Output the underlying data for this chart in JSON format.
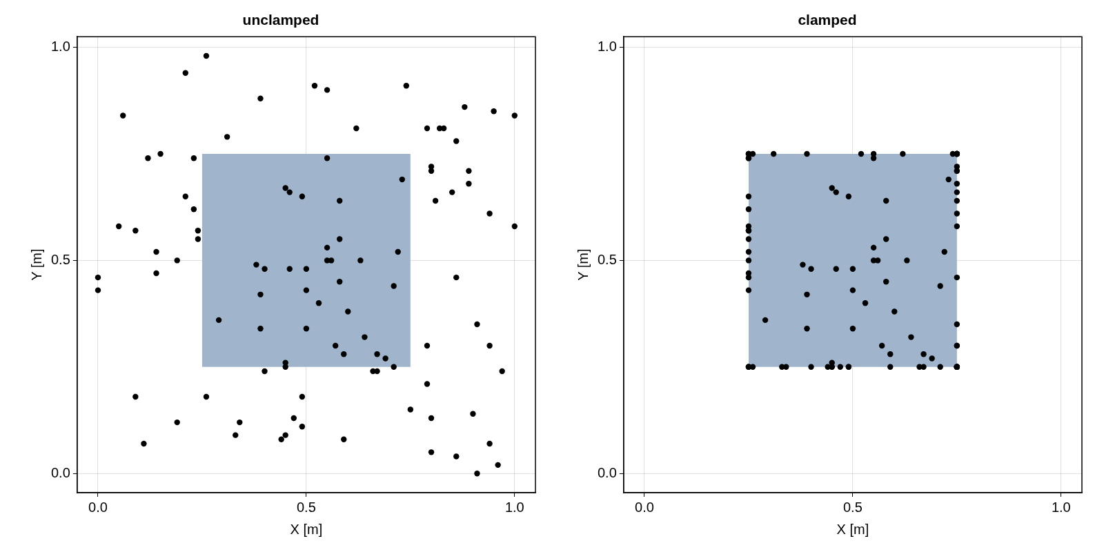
{
  "chart_data": [
    {
      "type": "scatter",
      "title": "unclamped",
      "xlabel": "X [m]",
      "ylabel": "Y [m]",
      "xlim": [
        -0.05,
        1.05
      ],
      "ylim": [
        -0.045,
        1.025
      ],
      "xticks": [
        {
          "value": 0,
          "label": "0.0"
        },
        {
          "value": 0.5,
          "label": "0.5"
        },
        {
          "value": 1,
          "label": "1.0"
        }
      ],
      "yticks": [
        {
          "value": 0,
          "label": "0.0"
        },
        {
          "value": 0.5,
          "label": "0.5"
        },
        {
          "value": 1,
          "label": "1.0"
        }
      ],
      "grid": true,
      "legend": false,
      "series": [
        {
          "type": "area",
          "color": "#a0b5cc",
          "x": [
            0.25,
            0.75
          ],
          "values": [
            null,
            null
          ],
          "lower": [
            0.25,
            0.25
          ],
          "upper": [
            0.75,
            0.75
          ]
        },
        {
          "type": "scatter",
          "marker": "circle",
          "color": "#000000",
          "x": [
            0.26,
            0.21,
            0.39,
            0.06,
            0.31,
            0.15,
            0.12,
            0.23,
            0.45,
            0.46,
            0.49,
            0.21,
            0.23,
            0.05,
            0.09,
            0.24,
            0.24,
            0.14,
            0.19,
            0.38,
            0.52,
            0.55,
            0.74,
            0.88,
            0.95,
            1.0,
            0.62,
            0.79,
            0.82,
            0.83,
            0.86,
            0.55,
            0.73,
            0.8,
            0.8,
            0.89,
            0.89,
            0.85,
            0.81,
            0.94,
            1.0,
            0.58,
            0.58,
            0.55,
            0.72,
            0.55,
            0.56,
            0.63,
            0.4,
            0.46,
            0.5,
            0.0,
            0.0,
            0.14,
            0.39,
            0.5,
            0.29,
            0.39,
            0.5,
            0.45,
            0.45,
            0.4,
            0.09,
            0.26,
            0.49,
            0.19,
            0.34,
            0.47,
            0.49,
            0.33,
            0.44,
            0.45,
            0.11,
            0.58,
            0.71,
            0.53,
            0.6,
            0.64,
            0.57,
            0.59,
            0.67,
            0.69,
            0.71,
            0.66,
            0.67,
            0.86,
            0.91,
            0.79,
            0.94,
            0.97,
            0.79,
            0.75,
            0.9,
            0.8,
            0.59,
            0.94,
            0.8,
            0.86,
            0.96,
            0.91
          ],
          "values": [
            0.98,
            0.94,
            0.88,
            0.84,
            0.79,
            0.75,
            0.74,
            0.74,
            0.67,
            0.66,
            0.65,
            0.65,
            0.62,
            0.58,
            0.57,
            0.57,
            0.55,
            0.52,
            0.5,
            0.49,
            0.91,
            0.9,
            0.91,
            0.86,
            0.85,
            0.84,
            0.81,
            0.81,
            0.81,
            0.81,
            0.78,
            0.74,
            0.69,
            0.72,
            0.71,
            0.71,
            0.68,
            0.66,
            0.64,
            0.61,
            0.58,
            0.64,
            0.55,
            0.53,
            0.52,
            0.5,
            0.5,
            0.5,
            0.48,
            0.48,
            0.48,
            0.46,
            0.43,
            0.47,
            0.42,
            0.43,
            0.36,
            0.34,
            0.34,
            0.26,
            0.25,
            0.24,
            0.18,
            0.18,
            0.18,
            0.12,
            0.12,
            0.13,
            0.11,
            0.09,
            0.08,
            0.09,
            0.07,
            0.45,
            0.44,
            0.4,
            0.38,
            0.32,
            0.3,
            0.28,
            0.28,
            0.27,
            0.25,
            0.24,
            0.24,
            0.46,
            0.35,
            0.3,
            0.3,
            0.24,
            0.21,
            0.15,
            0.14,
            0.13,
            0.08,
            0.07,
            0.05,
            0.04,
            0.02,
            0.0
          ]
        }
      ]
    },
    {
      "type": "scatter",
      "title": "clamped",
      "xlabel": "X [m]",
      "ylabel": "Y [m]",
      "xlim": [
        -0.05,
        1.05
      ],
      "ylim": [
        -0.045,
        1.025
      ],
      "xticks": [
        {
          "value": 0,
          "label": "0.0"
        },
        {
          "value": 0.5,
          "label": "0.5"
        },
        {
          "value": 1,
          "label": "1.0"
        }
      ],
      "yticks": [
        {
          "value": 0,
          "label": "0.0"
        },
        {
          "value": 0.5,
          "label": "0.5"
        },
        {
          "value": 1,
          "label": "1.0"
        }
      ],
      "grid": true,
      "legend": false,
      "series": [
        {
          "type": "area",
          "color": "#a0b5cc",
          "x": [
            0.25,
            0.75
          ],
          "values": [
            null,
            null
          ],
          "lower": [
            0.25,
            0.25
          ],
          "upper": [
            0.75,
            0.75
          ]
        },
        {
          "type": "scatter",
          "marker": "circle",
          "color": "#000000",
          "x": [
            0.26,
            0.25,
            0.39,
            0.25,
            0.31,
            0.25,
            0.25,
            0.25,
            0.45,
            0.46,
            0.49,
            0.25,
            0.25,
            0.25,
            0.25,
            0.25,
            0.25,
            0.25,
            0.25,
            0.38,
            0.52,
            0.55,
            0.74,
            0.75,
            0.75,
            0.75,
            0.62,
            0.75,
            0.75,
            0.75,
            0.75,
            0.55,
            0.73,
            0.75,
            0.75,
            0.75,
            0.75,
            0.75,
            0.75,
            0.75,
            0.75,
            0.58,
            0.58,
            0.55,
            0.72,
            0.55,
            0.56,
            0.63,
            0.4,
            0.46,
            0.5,
            0.25,
            0.25,
            0.25,
            0.39,
            0.5,
            0.29,
            0.39,
            0.5,
            0.45,
            0.45,
            0.4,
            0.25,
            0.26,
            0.49,
            0.25,
            0.34,
            0.47,
            0.49,
            0.33,
            0.44,
            0.45,
            0.25,
            0.58,
            0.71,
            0.53,
            0.6,
            0.64,
            0.57,
            0.59,
            0.67,
            0.69,
            0.71,
            0.66,
            0.67,
            0.75,
            0.75,
            0.75,
            0.75,
            0.75,
            0.75,
            0.75,
            0.75,
            0.75,
            0.59,
            0.75,
            0.75,
            0.75,
            0.75,
            0.75
          ],
          "values": [
            0.75,
            0.75,
            0.75,
            0.75,
            0.75,
            0.75,
            0.74,
            0.74,
            0.67,
            0.66,
            0.65,
            0.65,
            0.62,
            0.58,
            0.57,
            0.57,
            0.55,
            0.52,
            0.5,
            0.49,
            0.75,
            0.75,
            0.75,
            0.75,
            0.75,
            0.75,
            0.75,
            0.75,
            0.75,
            0.75,
            0.75,
            0.74,
            0.69,
            0.72,
            0.71,
            0.71,
            0.68,
            0.66,
            0.64,
            0.61,
            0.58,
            0.64,
            0.55,
            0.53,
            0.52,
            0.5,
            0.5,
            0.5,
            0.48,
            0.48,
            0.48,
            0.46,
            0.43,
            0.47,
            0.42,
            0.43,
            0.36,
            0.34,
            0.34,
            0.26,
            0.25,
            0.25,
            0.25,
            0.25,
            0.25,
            0.25,
            0.25,
            0.25,
            0.25,
            0.25,
            0.25,
            0.25,
            0.25,
            0.45,
            0.44,
            0.4,
            0.38,
            0.32,
            0.3,
            0.28,
            0.28,
            0.27,
            0.25,
            0.25,
            0.25,
            0.46,
            0.35,
            0.3,
            0.3,
            0.25,
            0.25,
            0.25,
            0.25,
            0.25,
            0.25,
            0.25,
            0.25,
            0.25,
            0.25,
            0.25
          ]
        }
      ]
    }
  ]
}
